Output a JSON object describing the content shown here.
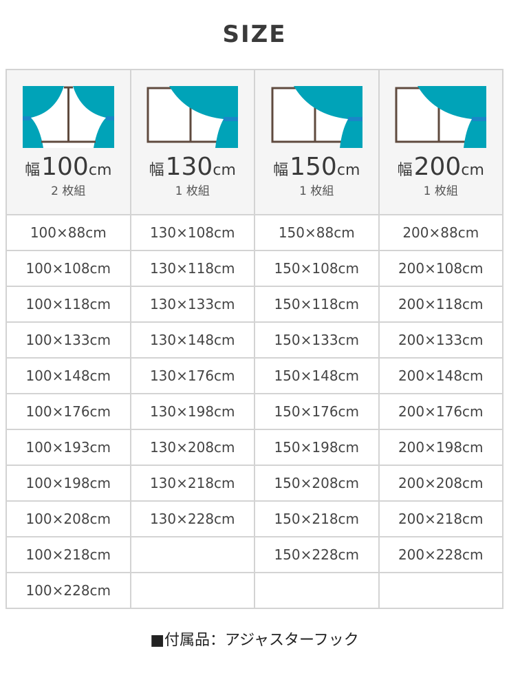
{
  "title": "SIZE",
  "colors": {
    "curtain": "#00a3b8",
    "frame": "#5f4a3e",
    "tieback": "#1a86c8"
  },
  "columns": [
    {
      "icon": "double-curtain-icon",
      "width_label": "幅",
      "width": "100",
      "unit": "cm",
      "count": "2 枚組",
      "sizes": [
        "100×88cm",
        "100×108cm",
        "100×118cm",
        "100×133cm",
        "100×148cm",
        "100×176cm",
        "100×193cm",
        "100×198cm",
        "100×208cm",
        "100×218cm",
        "100×228cm"
      ]
    },
    {
      "icon": "single-curtain-icon",
      "width_label": "幅",
      "width": "130",
      "unit": "cm",
      "count": "1 枚組",
      "sizes": [
        "130×108cm",
        "130×118cm",
        "130×133cm",
        "130×148cm",
        "130×176cm",
        "130×198cm",
        "130×208cm",
        "130×218cm",
        "130×228cm"
      ]
    },
    {
      "icon": "single-curtain-icon",
      "width_label": "幅",
      "width": "150",
      "unit": "cm",
      "count": "1 枚組",
      "sizes": [
        "150×88cm",
        "150×108cm",
        "150×118cm",
        "150×133cm",
        "150×148cm",
        "150×176cm",
        "150×198cm",
        "150×208cm",
        "150×218cm",
        "150×228cm"
      ]
    },
    {
      "icon": "single-curtain-icon",
      "width_label": "幅",
      "width": "200",
      "unit": "cm",
      "count": "1 枚組",
      "sizes": [
        "200×88cm",
        "200×108cm",
        "200×118cm",
        "200×133cm",
        "200×148cm",
        "200×176cm",
        "200×198cm",
        "200×208cm",
        "200×218cm",
        "200×228cm"
      ]
    }
  ],
  "note": "■付属品：アジャスターフック"
}
